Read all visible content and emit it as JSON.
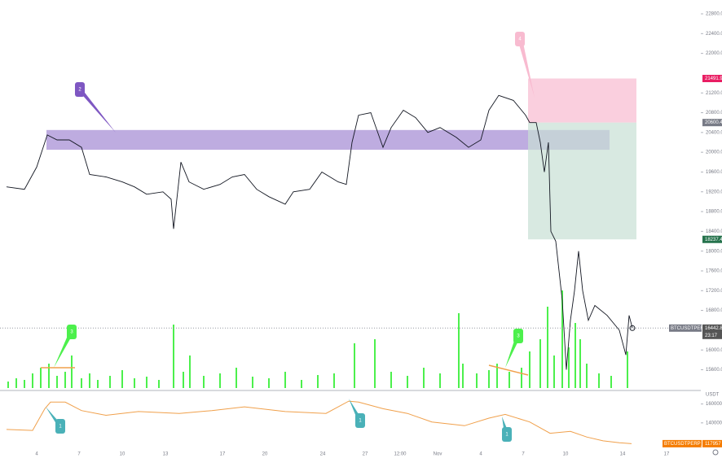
{
  "chart_data": [
    {
      "type": "line",
      "color": "#131722",
      "xlim": [
        0,
        860
      ],
      "xticks": [
        {
          "value": 45,
          "label": "4"
        },
        {
          "value": 97,
          "label": "7"
        },
        {
          "value": 150,
          "label": "10"
        },
        {
          "value": 203,
          "label": "13"
        },
        {
          "value": 273,
          "label": "17"
        },
        {
          "value": 325,
          "label": "20"
        },
        {
          "value": 396,
          "label": "24"
        },
        {
          "value": 448,
          "label": "27"
        },
        {
          "value": 491,
          "label": "12:00"
        },
        {
          "value": 537,
          "label": "Nov"
        },
        {
          "value": 590,
          "label": "4"
        },
        {
          "value": 642,
          "label": "7"
        },
        {
          "value": 694,
          "label": "10"
        },
        {
          "value": 764,
          "label": "14"
        },
        {
          "value": 818,
          "label": "17"
        }
      ],
      "ylim": [
        15230,
        23080
      ],
      "yticks": [
        {
          "value": 22800,
          "label": "22800.0"
        },
        {
          "value": 22400,
          "label": "22400.0"
        },
        {
          "value": 22000,
          "label": "22000.0"
        },
        {
          "value": 21200,
          "label": "21200.0"
        },
        {
          "value": 20800,
          "label": "20800.0"
        },
        {
          "value": 20400,
          "label": "20400.0"
        },
        {
          "value": 20000,
          "label": "20000.0"
        },
        {
          "value": 19600,
          "label": "19600.0"
        },
        {
          "value": 19200,
          "label": "19200.0"
        },
        {
          "value": 18800,
          "label": "18800.0"
        },
        {
          "value": 18400,
          "label": "18400.0"
        },
        {
          "value": 18000,
          "label": "18000.0"
        },
        {
          "value": 17600,
          "label": "17600.0"
        },
        {
          "value": 17200,
          "label": "17200.0"
        },
        {
          "value": 16800,
          "label": "16800.0"
        },
        {
          "value": 16000,
          "label": "16000.0"
        },
        {
          "value": 15600,
          "label": "15600.0"
        }
      ],
      "x": [
        8,
        30,
        45,
        58,
        70,
        85,
        100,
        110,
        130,
        150,
        165,
        180,
        200,
        210,
        213,
        222,
        232,
        250,
        270,
        285,
        300,
        315,
        330,
        350,
        360,
        380,
        395,
        415,
        425,
        432,
        440,
        455,
        470,
        480,
        495,
        510,
        525,
        540,
        560,
        575,
        590,
        600,
        612,
        630,
        645,
        650,
        658,
        663,
        668,
        673,
        676,
        682,
        690,
        695,
        700,
        705,
        710,
        715,
        722,
        730,
        745,
        760,
        768,
        772,
        776
      ],
      "values": [
        19300,
        19250,
        19700,
        20350,
        20250,
        20250,
        20100,
        19550,
        19500,
        19400,
        19300,
        19150,
        19200,
        19050,
        18450,
        19800,
        19400,
        19250,
        19350,
        19500,
        19550,
        19250,
        19100,
        18950,
        19200,
        19250,
        19600,
        19400,
        19350,
        20200,
        20750,
        20800,
        20100,
        20500,
        20850,
        20700,
        20400,
        20500,
        20300,
        20100,
        20250,
        20850,
        21150,
        21050,
        20750,
        20600,
        20600,
        20200,
        19600,
        20200,
        18400,
        18200,
        17000,
        15600,
        16600,
        17200,
        18000,
        17200,
        16600,
        16900,
        16700,
        16400,
        15900,
        16700,
        16442.8
      ],
      "zones": [
        {
          "x": [
            57,
            748
          ],
          "y": [
            20450,
            20050
          ],
          "color": "#b39ddb"
        },
        {
          "x": [
            648,
            781
          ],
          "y": [
            21491.9,
            20600.4
          ],
          "color": "#f8bbd0"
        },
        {
          "x": [
            648,
            781
          ],
          "y": [
            20600.4,
            18237.4
          ],
          "color": "#c8e0d4"
        }
      ],
      "price_labels": [
        {
          "value": 21491.9,
          "color": "#e91e63"
        },
        {
          "value": 20600.4,
          "color": "#787b86"
        },
        {
          "value": 18237.4,
          "color": "#26734d"
        }
      ],
      "symbol": "BTCUSDTPERP",
      "last": 16442.8,
      "countdown": "23:17",
      "annotations": [
        "2",
        "4",
        "3",
        "3"
      ]
    },
    {
      "type": "bar",
      "color": "#4cf04c",
      "ylim": [
        0,
        120
      ],
      "x": [
        10,
        20,
        30,
        40,
        50,
        60,
        70,
        80,
        88,
        100,
        110,
        120,
        135,
        150,
        165,
        180,
        195,
        213,
        225,
        233,
        250,
        270,
        290,
        310,
        330,
        350,
        370,
        390,
        410,
        435,
        460,
        480,
        500,
        520,
        540,
        563,
        568,
        585,
        600,
        610,
        625,
        640,
        650,
        663,
        672,
        680,
        690,
        698,
        706,
        712,
        720,
        735,
        750,
        770
      ],
      "values": [
        8,
        12,
        10,
        18,
        25,
        30,
        15,
        20,
        40,
        12,
        18,
        10,
        15,
        22,
        12,
        14,
        10,
        78,
        20,
        40,
        15,
        18,
        25,
        14,
        12,
        20,
        10,
        16,
        18,
        55,
        60,
        20,
        15,
        25,
        18,
        92,
        30,
        18,
        22,
        30,
        20,
        25,
        45,
        60,
        100,
        40,
        120,
        50,
        80,
        60,
        30,
        18,
        15,
        45
      ]
    },
    {
      "type": "line",
      "color": "#f0a04b",
      "unit": "USDT",
      "ylim": [
        114000,
        170000
      ],
      "yticks": [
        {
          "value": 160000,
          "label": "160000.0"
        },
        {
          "value": 140000,
          "label": "140000.0"
        }
      ],
      "x": [
        8,
        40,
        55,
        62,
        80,
        100,
        130,
        170,
        220,
        260,
        300,
        350,
        400,
        428,
        440,
        470,
        500,
        530,
        570,
        600,
        620,
        650,
        675,
        700,
        720,
        740,
        760,
        775
      ],
      "values": [
        133000,
        132000,
        155000,
        162000,
        162000,
        153000,
        148000,
        152000,
        150000,
        153000,
        157000,
        152000,
        150000,
        163000,
        162000,
        155000,
        150000,
        141000,
        137000,
        145000,
        149000,
        141000,
        129000,
        131000,
        125000,
        121000,
        119000,
        117957
      ],
      "symbol": "BTCUSDTPERP_OI",
      "last": 117957,
      "annotations": [
        "1",
        "1",
        "1"
      ]
    }
  ]
}
